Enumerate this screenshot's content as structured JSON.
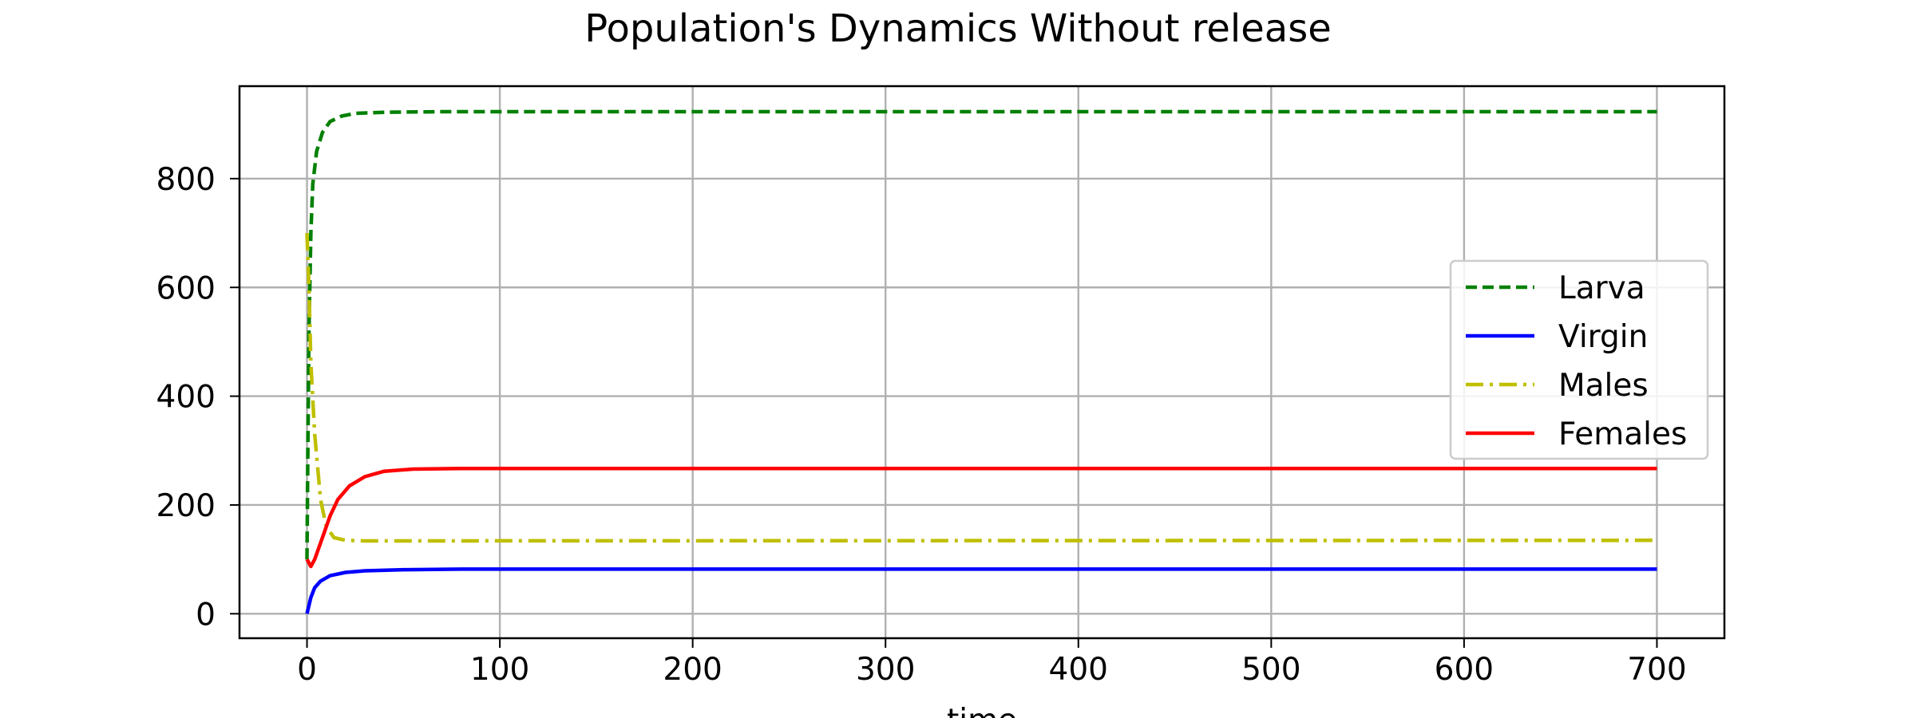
{
  "chart_data": {
    "type": "line",
    "title": "Population's Dynamics Without release",
    "xlabel": "time",
    "ylabel": "",
    "xlim": [
      -35,
      735
    ],
    "ylim": [
      -45,
      970
    ],
    "xticks": [
      0,
      100,
      200,
      300,
      400,
      500,
      600,
      700
    ],
    "yticks": [
      0,
      200,
      400,
      600,
      800
    ],
    "grid": true,
    "legend_position": "center-right",
    "series": [
      {
        "name": "Larva",
        "color": "#008000",
        "style": "dashed",
        "points": [
          [
            0,
            100
          ],
          [
            0.5,
            330
          ],
          [
            1,
            520
          ],
          [
            2,
            700
          ],
          [
            3,
            790
          ],
          [
            5,
            850
          ],
          [
            8,
            885
          ],
          [
            12,
            905
          ],
          [
            18,
            915
          ],
          [
            25,
            920
          ],
          [
            40,
            922
          ],
          [
            70,
            923
          ],
          [
            700,
            923
          ]
        ]
      },
      {
        "name": "Virgin",
        "color": "#0000ff",
        "style": "solid",
        "points": [
          [
            0,
            0
          ],
          [
            2,
            30
          ],
          [
            4,
            48
          ],
          [
            7,
            60
          ],
          [
            12,
            70
          ],
          [
            20,
            76
          ],
          [
            30,
            79
          ],
          [
            50,
            81
          ],
          [
            80,
            82
          ],
          [
            700,
            82
          ]
        ]
      },
      {
        "name": "Males",
        "color": "#bfbf00",
        "style": "dashdot",
        "points": [
          [
            0,
            700
          ],
          [
            1,
            600
          ],
          [
            2,
            460
          ],
          [
            4,
            330
          ],
          [
            7,
            210
          ],
          [
            10,
            160
          ],
          [
            14,
            140
          ],
          [
            20,
            135
          ],
          [
            30,
            134
          ],
          [
            700,
            135
          ]
        ]
      },
      {
        "name": "Females",
        "color": "#ff0000",
        "style": "solid",
        "points": [
          [
            0,
            100
          ],
          [
            2,
            87
          ],
          [
            4,
            100
          ],
          [
            8,
            140
          ],
          [
            12,
            180
          ],
          [
            16,
            210
          ],
          [
            22,
            235
          ],
          [
            30,
            252
          ],
          [
            40,
            262
          ],
          [
            55,
            266
          ],
          [
            80,
            267
          ],
          [
            700,
            267
          ]
        ]
      }
    ]
  }
}
